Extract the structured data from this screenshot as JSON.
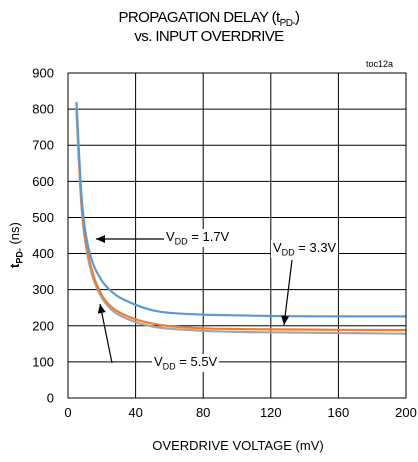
{
  "chart_data": {
    "type": "line",
    "title_line1": "PROPAGATION DELAY (t",
    "title_sub": "PD-",
    "title_line1_end": ")",
    "title_line2": "vs. INPUT OVERDRIVE",
    "figure_id": "toc12a",
    "xlabel": "OVERDRIVE VOLTAGE (mV)",
    "ylabel_main": "t",
    "ylabel_sub": "PD-",
    "ylabel_unit": " (ns)",
    "xlim": [
      0,
      200
    ],
    "ylim": [
      0,
      900
    ],
    "x_ticks": [
      "0",
      "40",
      "80",
      "120",
      "160",
      "200"
    ],
    "y_ticks": [
      "0",
      "100",
      "200",
      "300",
      "400",
      "500",
      "600",
      "700",
      "800",
      "900"
    ],
    "grid": true,
    "series": [
      {
        "name": "VDD = 1.7V",
        "color": "#5b9bd5",
        "points": [
          [
            5,
            820
          ],
          [
            8,
            560
          ],
          [
            11,
            440
          ],
          [
            15,
            370
          ],
          [
            20,
            325
          ],
          [
            25,
            298
          ],
          [
            30,
            280
          ],
          [
            40,
            258
          ],
          [
            50,
            243
          ],
          [
            60,
            236
          ],
          [
            80,
            231
          ],
          [
            100,
            229
          ],
          [
            120,
            227
          ],
          [
            160,
            226
          ],
          [
            200,
            226
          ]
        ]
      },
      {
        "name": "VDD = 3.3V",
        "color": "#ed7d31",
        "points": [
          [
            5,
            800
          ],
          [
            8,
            540
          ],
          [
            11,
            420
          ],
          [
            15,
            340
          ],
          [
            20,
            285
          ],
          [
            25,
            255
          ],
          [
            30,
            238
          ],
          [
            40,
            218
          ],
          [
            50,
            206
          ],
          [
            60,
            199
          ],
          [
            80,
            193
          ],
          [
            100,
            191
          ],
          [
            120,
            190
          ],
          [
            160,
            189
          ],
          [
            200,
            188
          ]
        ]
      },
      {
        "name": "VDD = 5.5V",
        "color": "#a5a5a5",
        "points": [
          [
            5,
            795
          ],
          [
            8,
            530
          ],
          [
            11,
            410
          ],
          [
            15,
            330
          ],
          [
            20,
            278
          ],
          [
            25,
            248
          ],
          [
            30,
            230
          ],
          [
            40,
            210
          ],
          [
            50,
            198
          ],
          [
            60,
            192
          ],
          [
            80,
            186
          ],
          [
            100,
            183
          ],
          [
            120,
            182
          ],
          [
            160,
            180
          ],
          [
            200,
            178
          ]
        ]
      }
    ],
    "annotations": [
      {
        "label_main": "V",
        "label_sub": "DD",
        "label_rest": " = 1.7V"
      },
      {
        "label_main": "V",
        "label_sub": "DD",
        "label_rest": " = 3.3V"
      },
      {
        "label_main": "V",
        "label_sub": "DD",
        "label_rest": " = 5.5V"
      }
    ]
  }
}
